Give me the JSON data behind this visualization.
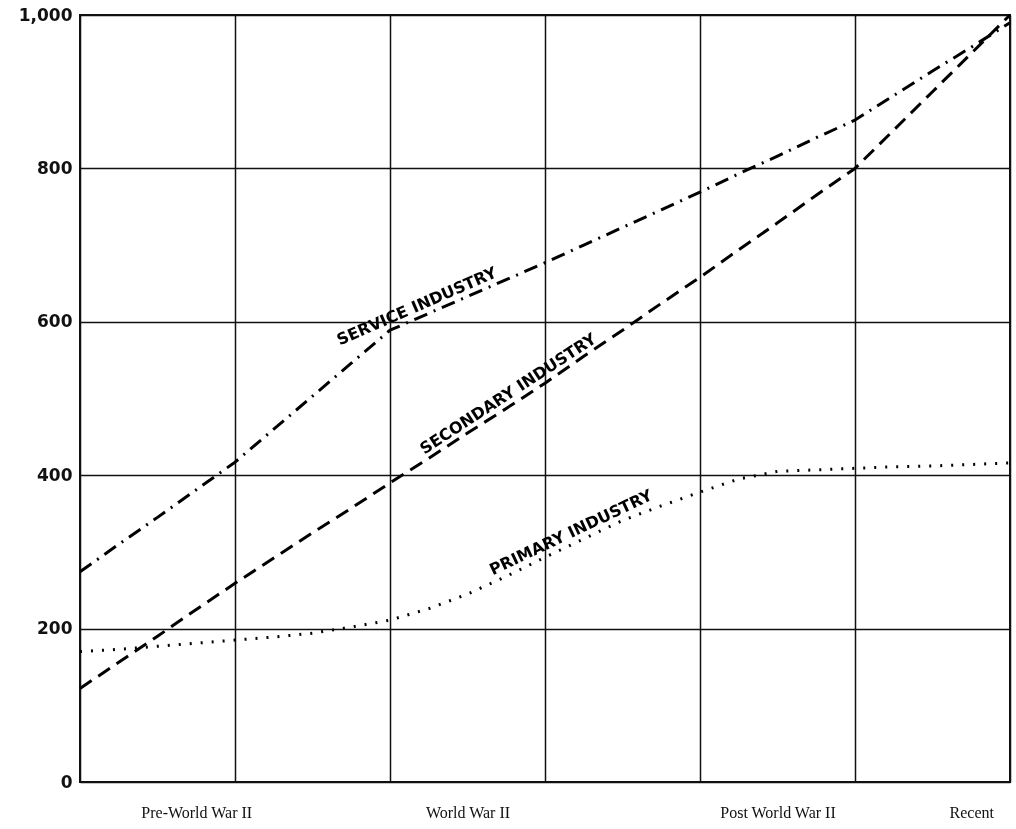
{
  "chart_data": {
    "type": "line",
    "categories": [
      null,
      null,
      null,
      "Pre-World War II",
      null,
      null,
      null,
      null,
      null,
      null,
      "World War II",
      null,
      null,
      null,
      null,
      null,
      null,
      null,
      "Post World War II",
      null,
      null,
      null,
      null,
      "Recent",
      null
    ],
    "ylim": [
      0,
      1000
    ],
    "yticks": [
      0,
      200,
      400,
      600,
      800,
      {
        "value": 1000,
        "label": "1,000"
      }
    ],
    "grid": true,
    "marker": "none",
    "series": [
      {
        "name": "SERVICE INDUSTRY",
        "color": "#000000",
        "line_style": "dashdot",
        "values": [
          274,
          310,
          345,
          381,
          417,
          460,
          503,
          546,
          589,
          611,
          633,
          655,
          677,
          700,
          723,
          746,
          769,
          793,
          816,
          840,
          863,
          895,
          927,
          958,
          990
        ]
      },
      {
        "name": "SECONDARY INDUSTRY",
        "color": "#000000",
        "line_style": "dashed",
        "values": [
          122,
          156,
          190,
          225,
          259,
          292,
          325,
          357,
          390,
          422,
          455,
          487,
          520,
          555,
          589,
          624,
          658,
          694,
          729,
          765,
          800,
          850,
          900,
          950,
          1000
        ]
      },
      {
        "name": "PRIMARY INDUSTRY",
        "color": "#000000",
        "line_style": "dotted",
        "values": [
          170,
          173,
          177,
          181,
          185,
          189,
          194,
          202,
          211,
          226,
          245,
          268,
          293,
          317,
          341,
          360,
          378,
          395,
          405,
          407,
          409,
          411,
          412,
          414,
          416
        ]
      }
    ]
  }
}
